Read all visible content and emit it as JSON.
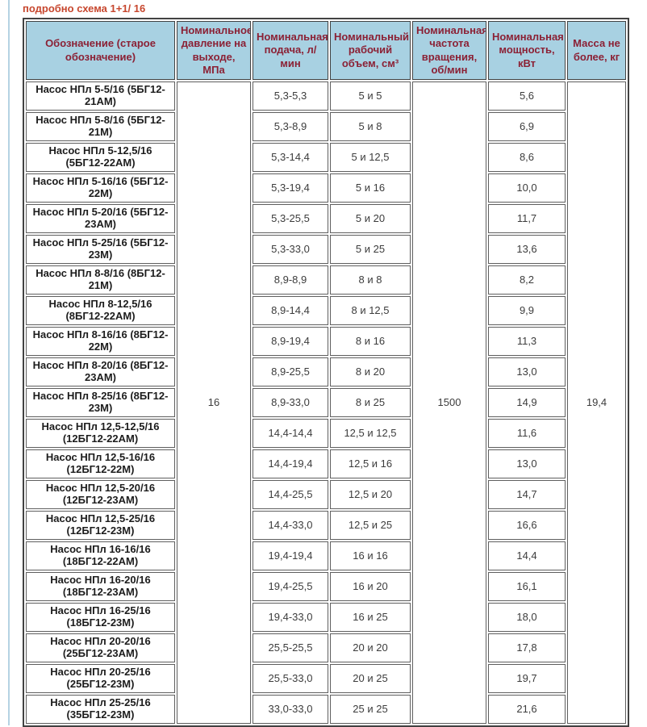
{
  "page": {
    "title_link": "подробно схема 1+1/ 16"
  },
  "colors": {
    "header_bg": "#a8d1e2",
    "header_text": "#8b2135",
    "title_link": "#c7472e",
    "outer_border": "#424242",
    "cell_border": "#5f5f5f",
    "left_rule": "#b5d3e3"
  },
  "table": {
    "headers": [
      "Обозначение (старое обозначение)",
      "Номинальное давление на выходе, МПа",
      "Номинальная подача, л/мин",
      "Номинальный рабочий объем, см³",
      "Номинальная частота вращения, об/мин",
      "Номинальная мощность, кВт",
      "Масса не более, кг"
    ],
    "merged": {
      "pressure_mpa": "16",
      "speed_rpm": "1500",
      "mass_kg": "19,4"
    },
    "rows": [
      {
        "name": "Насос НПл 5-5/16 (5БГ12-21АМ)",
        "flow": "5,3-5,3",
        "volume": "5 и 5",
        "power": "5,6"
      },
      {
        "name": "Насос НПл 5-8/16 (5БГ12-21М)",
        "flow": "5,3-8,9",
        "volume": "5 и 8",
        "power": "6,9"
      },
      {
        "name": "Насос НПл 5-12,5/16 (5БГ12-22АМ)",
        "flow": "5,3-14,4",
        "volume": "5 и 12,5",
        "power": "8,6"
      },
      {
        "name": "Насос НПл 5-16/16 (5БГ12-22М)",
        "flow": "5,3-19,4",
        "volume": "5 и 16",
        "power": "10,0"
      },
      {
        "name": "Насос НПл 5-20/16 (5БГ12-23АМ)",
        "flow": "5,3-25,5",
        "volume": "5 и 20",
        "power": "11,7"
      },
      {
        "name": "Насос НПл 5-25/16 (5БГ12-23М)",
        "flow": "5,3-33,0",
        "volume": "5 и 25",
        "power": "13,6"
      },
      {
        "name": "Насос НПл 8-8/16 (8БГ12-21М)",
        "flow": "8,9-8,9",
        "volume": "8 и 8",
        "power": "8,2"
      },
      {
        "name": "Насос НПл 8-12,5/16 (8БГ12-22АМ)",
        "flow": "8,9-14,4",
        "volume": "8 и 12,5",
        "power": "9,9"
      },
      {
        "name": "Насос НПл 8-16/16 (8БГ12-22М)",
        "flow": "8,9-19,4",
        "volume": "8 и 16",
        "power": "11,3"
      },
      {
        "name": "Насос НПл 8-20/16 (8БГ12-23АМ)",
        "flow": "8,9-25,5",
        "volume": "8 и 20",
        "power": "13,0"
      },
      {
        "name": "Насос НПл 8-25/16 (8БГ12-23М)",
        "flow": "8,9-33,0",
        "volume": "8 и 25",
        "power": "14,9"
      },
      {
        "name": "Насос НПл 12,5-12,5/16 (12БГ12-22АМ)",
        "flow": "14,4-14,4",
        "volume": "12,5 и 12,5",
        "power": "11,6"
      },
      {
        "name": "Насос НПл 12,5-16/16 (12БГ12-22М)",
        "flow": "14,4-19,4",
        "volume": "12,5 и 16",
        "power": "13,0"
      },
      {
        "name": "Насос НПл 12,5-20/16 (12БГ12-23АМ)",
        "flow": "14,4-25,5",
        "volume": "12,5 и 20",
        "power": "14,7"
      },
      {
        "name": "Насос НПл 12,5-25/16 (12БГ12-23М)",
        "flow": "14,4-33,0",
        "volume": "12,5 и 25",
        "power": "16,6"
      },
      {
        "name": "Насос НПл 16-16/16 (18БГ12-22АМ)",
        "flow": "19,4-19,4",
        "volume": "16 и 16",
        "power": "14,4"
      },
      {
        "name": "Насос НПл 16-20/16 (18БГ12-23АМ)",
        "flow": "19,4-25,5",
        "volume": "16 и 20",
        "power": "16,1"
      },
      {
        "name": "Насос НПл 16-25/16 (18БГ12-23М)",
        "flow": "19,4-33,0",
        "volume": "16 и 25",
        "power": "18,0"
      },
      {
        "name": "Насос НПл 20-20/16 (25БГ12-23АМ)",
        "flow": "25,5-25,5",
        "volume": "20 и 20",
        "power": "17,8"
      },
      {
        "name": "Насос НПл 20-25/16 (25БГ12-23М)",
        "flow": "25,5-33,0",
        "volume": "20 и 25",
        "power": "19,7"
      },
      {
        "name": "Насос НПл 25-25/16 (35БГ12-23М)",
        "flow": "33,0-33,0",
        "volume": "25 и 25",
        "power": "21,6"
      }
    ]
  }
}
